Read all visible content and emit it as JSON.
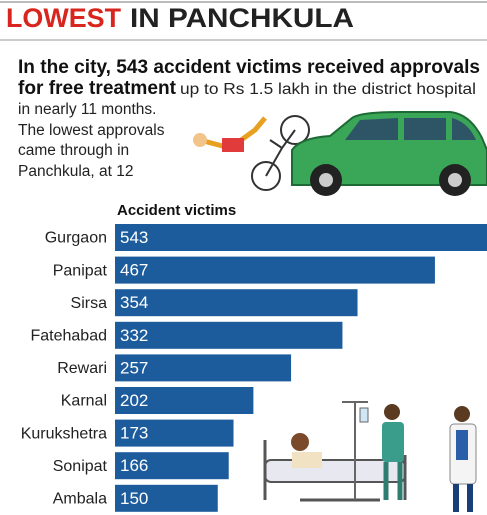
{
  "chart_data": {
    "type": "bar",
    "orientation": "horizontal",
    "title": [
      "LOWEST",
      "IN PANCHKULA"
    ],
    "subtitle_bold": [
      "In the city, 543 accident victims received approvals",
      "for free treatment"
    ],
    "subtitle": [
      "up to Rs 1.5 lakh in the district hospital",
      "in nearly 11 months.",
      "The lowest approvals",
      "came through in",
      "Panchkula, at 12"
    ],
    "axis_label": "Accident victims",
    "categories": [
      "Gurgaon",
      "Panipat",
      "Sirsa",
      "Fatehabad",
      "Rewari",
      "Karnal",
      "Kurukshetra",
      "Sonipat",
      "Ambala"
    ],
    "values": [
      543,
      467,
      354,
      332,
      257,
      202,
      173,
      166,
      150
    ],
    "color": "#1d5c9c"
  }
}
